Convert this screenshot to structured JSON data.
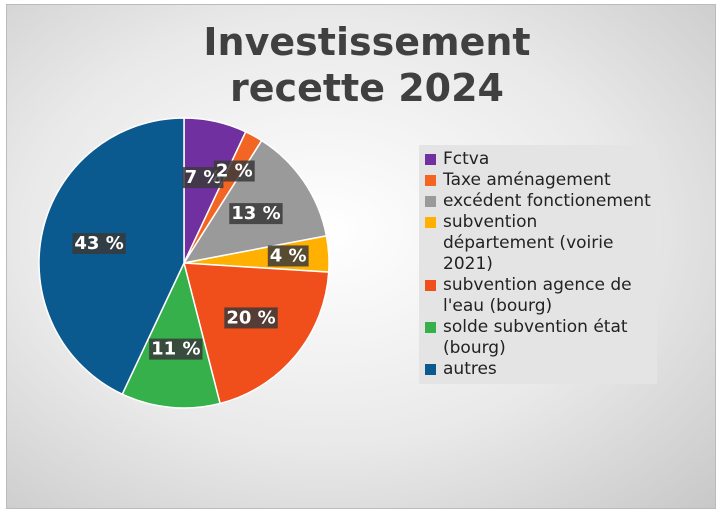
{
  "chart_data": {
    "type": "pie",
    "title": "Investissement recette 2024",
    "categories": [
      "Fctva",
      "Taxe aménagement",
      "excédent fonctionement",
      "subvention département (voirie 2021)",
      "subvention agence de l'eau (bourg)",
      "solde subvention état (bourg)",
      "autres"
    ],
    "values": [
      7,
      2,
      13,
      4,
      20,
      11,
      43
    ],
    "value_labels": [
      "7 %",
      "2 %",
      "13 %",
      "4 %",
      "20 %",
      "11 %",
      "43 %"
    ],
    "colors": [
      "#7030a0",
      "#f26522",
      "#9a9a9a",
      "#ffb000",
      "#f04e1a",
      "#35b04a",
      "#0b5a8f"
    ]
  }
}
